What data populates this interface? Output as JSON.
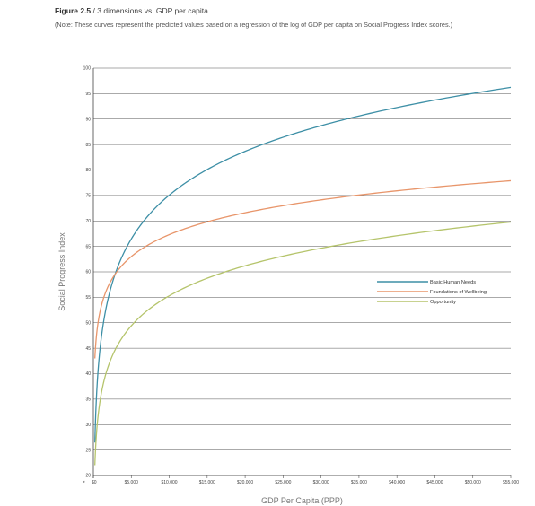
{
  "figure": {
    "label": "Figure 2.5",
    "separator": " / ",
    "title": "3 dimensions vs. GDP per capita",
    "note": "(Note: These curves represent the predicted values based on a regression of the log of GDP per capita on Social Progress Index scores.)"
  },
  "chart_data": {
    "type": "line",
    "xlabel": "GDP Per Capita (PPP)",
    "ylabel": "Social Progress Index",
    "xlim": [
      0,
      55000
    ],
    "ylim": [
      20,
      100
    ],
    "x_ticks": [
      0,
      5000,
      10000,
      15000,
      20000,
      25000,
      30000,
      35000,
      40000,
      45000,
      50000,
      55000
    ],
    "x_tick_labels": [
      "$0",
      "$5,000",
      "$10,000",
      "$15,000",
      "$20,000",
      "$25,000",
      "$30,000",
      "$35,000",
      "$40,000",
      "$45,000",
      "$50,000",
      "$55,000"
    ],
    "y_ticks": [
      20,
      25,
      30,
      35,
      40,
      45,
      50,
      55,
      60,
      65,
      70,
      75,
      80,
      85,
      90,
      95,
      100
    ],
    "y_tick_labels": [
      "20",
      "25",
      "30",
      "35",
      "40",
      "45",
      "50",
      "55",
      "60",
      "65",
      "70",
      "75",
      "80",
      "85",
      "90",
      "95",
      "100"
    ],
    "grid": "horizontal",
    "legend_position": "right",
    "axis_break": "≠",
    "series": [
      {
        "name": "Basic Human Needs",
        "color": "#3d8fa6",
        "x": [
          200,
          400,
          700,
          1000,
          1500,
          2000,
          3000,
          4000,
          5000,
          7000,
          10000,
          15000,
          20000,
          25000,
          30000,
          35000,
          40000,
          45000,
          50000,
          55000
        ],
        "y": [
          26.5,
          35.1,
          42.1,
          46.5,
          51.5,
          55.1,
          60.1,
          63.6,
          66.4,
          70.6,
          75.0,
          80.1,
          83.6,
          86.4,
          88.7,
          90.6,
          92.3,
          93.8,
          95.1,
          96.3
        ]
      },
      {
        "name": "Foundations of Wellbeing",
        "color": "#e8956a",
        "x": [
          200,
          400,
          700,
          1000,
          1500,
          2000,
          3000,
          4000,
          5000,
          7000,
          10000,
          15000,
          20000,
          25000,
          30000,
          35000,
          40000,
          45000,
          50000,
          55000
        ],
        "y": [
          43.0,
          47.3,
          50.8,
          53.0,
          55.5,
          57.3,
          59.8,
          61.6,
          63.0,
          65.1,
          67.3,
          69.8,
          71.6,
          73.0,
          74.1,
          75.1,
          75.9,
          76.7,
          77.3,
          77.9
        ]
      },
      {
        "name": "Opportunity",
        "color": "#b5c46b",
        "x": [
          200,
          400,
          700,
          1000,
          1500,
          2000,
          3000,
          4000,
          5000,
          7000,
          10000,
          15000,
          20000,
          25000,
          30000,
          35000,
          40000,
          45000,
          50000,
          55000
        ],
        "y": [
          22.0,
          27.9,
          32.7,
          35.7,
          39.2,
          41.6,
          45.1,
          47.5,
          49.4,
          52.3,
          55.3,
          58.7,
          61.2,
          63.1,
          64.6,
          65.9,
          67.1,
          68.1,
          69.0,
          69.8
        ]
      }
    ]
  }
}
